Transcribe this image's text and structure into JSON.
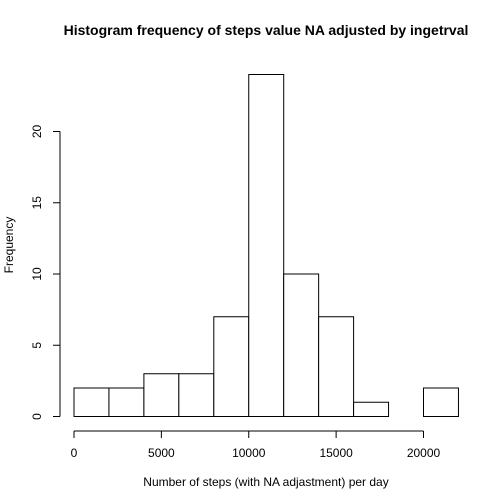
{
  "chart_data": {
    "type": "bar",
    "title": "Histogram frequency of steps value NA adjusted by ingetrval",
    "xlabel": "Number of steps (with NA adjastment) per day",
    "ylabel": "Frequency",
    "bins": [
      {
        "from": 0,
        "to": 2000,
        "count": 2
      },
      {
        "from": 2000,
        "to": 4000,
        "count": 2
      },
      {
        "from": 4000,
        "to": 6000,
        "count": 3
      },
      {
        "from": 6000,
        "to": 8000,
        "count": 3
      },
      {
        "from": 8000,
        "to": 10000,
        "count": 7
      },
      {
        "from": 10000,
        "to": 12000,
        "count": 24
      },
      {
        "from": 12000,
        "to": 14000,
        "count": 10
      },
      {
        "from": 14000,
        "to": 16000,
        "count": 7
      },
      {
        "from": 16000,
        "to": 18000,
        "count": 1
      },
      {
        "from": 18000,
        "to": 20000,
        "count": 0
      },
      {
        "from": 20000,
        "to": 22000,
        "count": 2
      }
    ],
    "xlim": [
      0,
      22000
    ],
    "ylim": [
      0,
      24
    ],
    "x_ticks": [
      0,
      5000,
      10000,
      15000,
      20000
    ],
    "x_tick_labels": [
      "0",
      "5000",
      "10000",
      "15000",
      "20000"
    ],
    "y_ticks": [
      0,
      5,
      10,
      15,
      20
    ],
    "y_tick_labels": [
      "0",
      "5",
      "10",
      "15",
      "20"
    ],
    "grid": false,
    "bar_fill": "#ffffff",
    "bar_stroke": "#000000"
  }
}
